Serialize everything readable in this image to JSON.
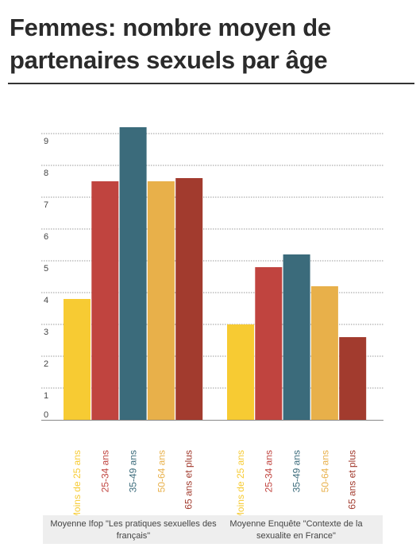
{
  "title": "Femmes: nombre moyen de partenaires sexuels par âge",
  "colors": {
    "grid": "#9a9a9a",
    "axis": "#888888",
    "tick_text": "#444444"
  },
  "chart_data": {
    "type": "bar",
    "title": "Femmes: nombre moyen de partenaires sexuels par âge",
    "ylim": [
      0,
      9.5
    ],
    "y_ticks": [
      "0",
      "1",
      "2",
      "3",
      "4",
      "5",
      "6",
      "7",
      "8",
      "9"
    ],
    "grid": true,
    "categories": [
      "Moins de 25 ans",
      "25-34 ans",
      "35-49 ans",
      "50-64 ans",
      "65 ans et plus"
    ],
    "category_colors": [
      "#f7cb33",
      "#c0443f",
      "#3b6b7b",
      "#e8b04a",
      "#a23b2e"
    ],
    "groups": [
      {
        "label": "Moyenne Ifop \"Les pratiques sexuelles des français\"",
        "values": [
          3.8,
          7.5,
          9.2,
          7.5,
          7.6
        ]
      },
      {
        "label": "Moyenne Enquête \"Contexte de la sexualite en France\"",
        "values": [
          3.0,
          4.8,
          5.2,
          4.2,
          2.6
        ]
      }
    ]
  }
}
